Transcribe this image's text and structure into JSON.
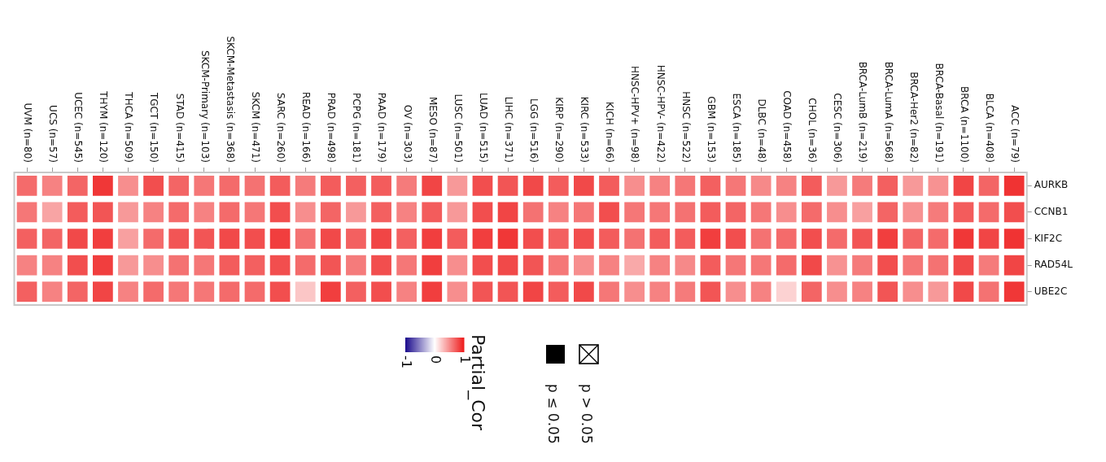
{
  "chart_data": {
    "type": "heatmap",
    "categories": [
      "UVM (n=80)",
      "UCS (n=57)",
      "UCEC (n=545)",
      "THYM (n=120)",
      "THCA (n=509)",
      "TGCT (n=150)",
      "STAD (n=415)",
      "SKCM-Primary (n=103)",
      "SKCM-Metastasis (n=368)",
      "SKCM (n=471)",
      "SARC (n=260)",
      "READ (n=166)",
      "PRAD (n=498)",
      "PCPG (n=181)",
      "PAAD (n=179)",
      "OV (n=303)",
      "MESO (n=87)",
      "LUSC (n=501)",
      "LUAD (n=515)",
      "LIHC (n=371)",
      "LGG (n=516)",
      "KIRP (n=290)",
      "KIRC (n=533)",
      "KICH (n=66)",
      "HNSC-HPV+ (n=98)",
      "HNSC-HPV- (n=422)",
      "HNSC (n=522)",
      "GBM (n=153)",
      "ESCA (n=185)",
      "DLBC (n=48)",
      "COAD (n=458)",
      "CHOL (n=36)",
      "CESC (n=306)",
      "BRCA-LumB (n=219)",
      "BRCA-LumA (n=568)",
      "BRCA-Her2 (n=82)",
      "BRCA-Basal (n=191)",
      "BRCA (n=1100)",
      "BLCA (n=408)",
      "ACC (n=79)"
    ],
    "y_categories": [
      "AURKB",
      "CCNB1",
      "KIF2C",
      "RAD54L",
      "UBE2C"
    ],
    "cells": [
      [
        0.65,
        0.55,
        0.68,
        0.88,
        0.5,
        0.78,
        0.68,
        0.6,
        0.65,
        0.62,
        0.72,
        0.58,
        0.72,
        0.7,
        0.72,
        0.58,
        0.82,
        0.45,
        0.78,
        0.75,
        0.8,
        0.72,
        0.8,
        0.72,
        0.5,
        0.55,
        0.6,
        0.7,
        0.6,
        0.52,
        0.55,
        0.72,
        0.45,
        0.58,
        0.7,
        0.45,
        0.48,
        0.82,
        0.68,
        0.9
      ],
      [
        0.6,
        0.4,
        0.72,
        0.75,
        0.45,
        0.55,
        0.65,
        0.55,
        0.65,
        0.6,
        0.78,
        0.5,
        0.68,
        0.45,
        0.7,
        0.55,
        0.72,
        0.45,
        0.78,
        0.82,
        0.62,
        0.55,
        0.6,
        0.78,
        0.6,
        0.6,
        0.62,
        0.72,
        0.68,
        0.6,
        0.5,
        0.65,
        0.5,
        0.42,
        0.68,
        0.48,
        0.58,
        0.72,
        0.65,
        0.78
      ],
      [
        0.7,
        0.68,
        0.8,
        0.85,
        0.42,
        0.65,
        0.75,
        0.75,
        0.8,
        0.78,
        0.85,
        0.62,
        0.8,
        0.7,
        0.82,
        0.7,
        0.85,
        0.72,
        0.85,
        0.88,
        0.78,
        0.7,
        0.78,
        0.72,
        0.62,
        0.72,
        0.72,
        0.85,
        0.78,
        0.62,
        0.65,
        0.78,
        0.65,
        0.75,
        0.85,
        0.68,
        0.65,
        0.88,
        0.82,
        0.9
      ],
      [
        0.55,
        0.55,
        0.78,
        0.85,
        0.45,
        0.5,
        0.62,
        0.6,
        0.72,
        0.7,
        0.78,
        0.65,
        0.75,
        0.58,
        0.78,
        0.6,
        0.85,
        0.5,
        0.78,
        0.8,
        0.75,
        0.6,
        0.5,
        0.55,
        0.38,
        0.55,
        0.52,
        0.72,
        0.6,
        0.6,
        0.65,
        0.8,
        0.48,
        0.58,
        0.78,
        0.6,
        0.62,
        0.8,
        0.58,
        0.82
      ],
      [
        0.7,
        0.55,
        0.68,
        0.82,
        0.55,
        0.65,
        0.6,
        0.6,
        0.65,
        0.65,
        0.78,
        0.25,
        0.85,
        0.7,
        0.78,
        0.55,
        0.85,
        0.5,
        0.75,
        0.75,
        0.82,
        0.72,
        0.8,
        0.6,
        0.5,
        0.55,
        0.58,
        0.75,
        0.5,
        0.55,
        0.2,
        0.68,
        0.5,
        0.55,
        0.75,
        0.5,
        0.45,
        0.8,
        0.62,
        0.88
      ]
    ],
    "clim": [
      -1,
      1
    ],
    "cticks": [
      -1,
      0,
      1
    ],
    "clabel": "Partial_Cor",
    "annotations": [
      "p ≤ 0.05",
      "p > 0.05"
    ]
  }
}
